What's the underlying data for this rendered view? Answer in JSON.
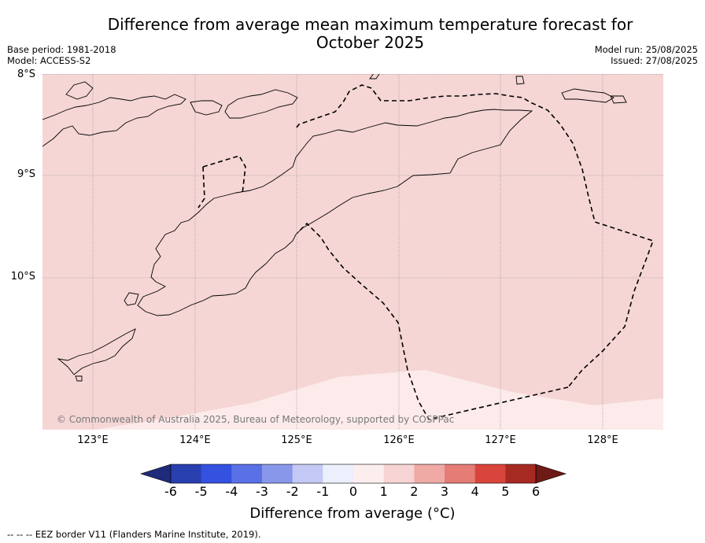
{
  "header": {
    "title": "Difference from average mean maximum temperature forecast for\nOctober 2025",
    "base_period": "Base period: 1981-2018",
    "model": "Model: ACCESS-S2",
    "model_run": "Model run: 25/08/2025",
    "issued": "Issued: 27/08/2025"
  },
  "map": {
    "latitude_labels": [
      "8°S",
      "9°S",
      "10°S"
    ],
    "longitude_labels": [
      "123°E",
      "124°E",
      "125°E",
      "126°E",
      "127°E",
      "128°E"
    ],
    "extent": {
      "lon_min": 122.5,
      "lon_max": 128.6,
      "lat_north": -8.0,
      "lat_south": -11.5
    },
    "anomaly_fill_main": "#f5d6d5",
    "anomaly_fill_south": "#fcebea",
    "copyright": "© Commonwealth of Australia 2025, Bureau of Meteorology, supported by COSPPac"
  },
  "colorbar": {
    "ticks": [
      "-6",
      "-5",
      "-4",
      "-3",
      "-2",
      "-1",
      "0",
      "1",
      "2",
      "3",
      "4",
      "5",
      "6"
    ],
    "colors": [
      "#1f2a7a",
      "#283fb0",
      "#3551e0",
      "#5a70e6",
      "#8897ea",
      "#c3c9f4",
      "#eceffc",
      "#fdeeee",
      "#f6d4d3",
      "#efaaa6",
      "#e57c75",
      "#d9453c",
      "#a62a22",
      "#6e1a16"
    ],
    "label": "Difference from average (°C)"
  },
  "legend": {
    "eez_note": "--  --  -- EEZ border V11 (Flanders Marine Institute, 2019)."
  }
}
